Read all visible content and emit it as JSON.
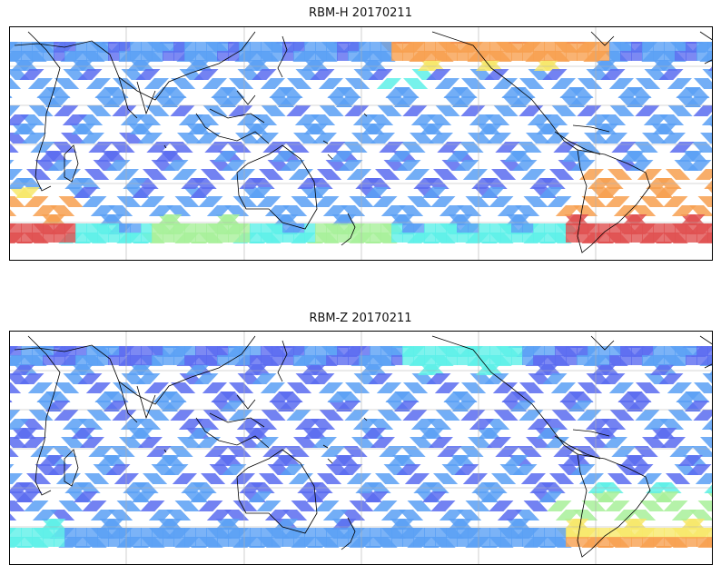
{
  "figure": {
    "panels": [
      {
        "id": "top",
        "title": "RBM-H 20170211",
        "hotspots": [
          "south-atlantic-south-america",
          "southern-ocean-west",
          "north-pacific-coast"
        ]
      },
      {
        "id": "bottom",
        "title": "RBM-Z 20170211",
        "hotspots": [
          "south-america-south-atlantic-mild"
        ]
      }
    ],
    "projection": "equirectangular",
    "gridlines": true,
    "coastlines": true,
    "colormap": "jet",
    "colors": {
      "low": "#5b6cf0",
      "low2": "#5aa0f5",
      "mid": "#5ef0e8",
      "mid2": "#a8f09a",
      "high": "#f7e86a",
      "high2": "#f7a050",
      "max": "#e05050",
      "coast": "#000000",
      "grid": "#b0b0b0"
    }
  }
}
